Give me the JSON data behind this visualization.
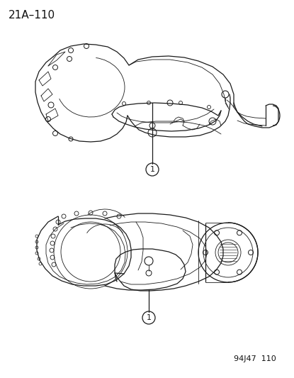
{
  "page_label": "21A–110",
  "part_number_label": "94J47  110",
  "background_color": "#ffffff",
  "line_color": "#1a1a1a",
  "page_label_fontsize": 11,
  "part_number_fontsize": 8,
  "fig_width": 4.15,
  "fig_height": 5.33,
  "dpi": 100
}
